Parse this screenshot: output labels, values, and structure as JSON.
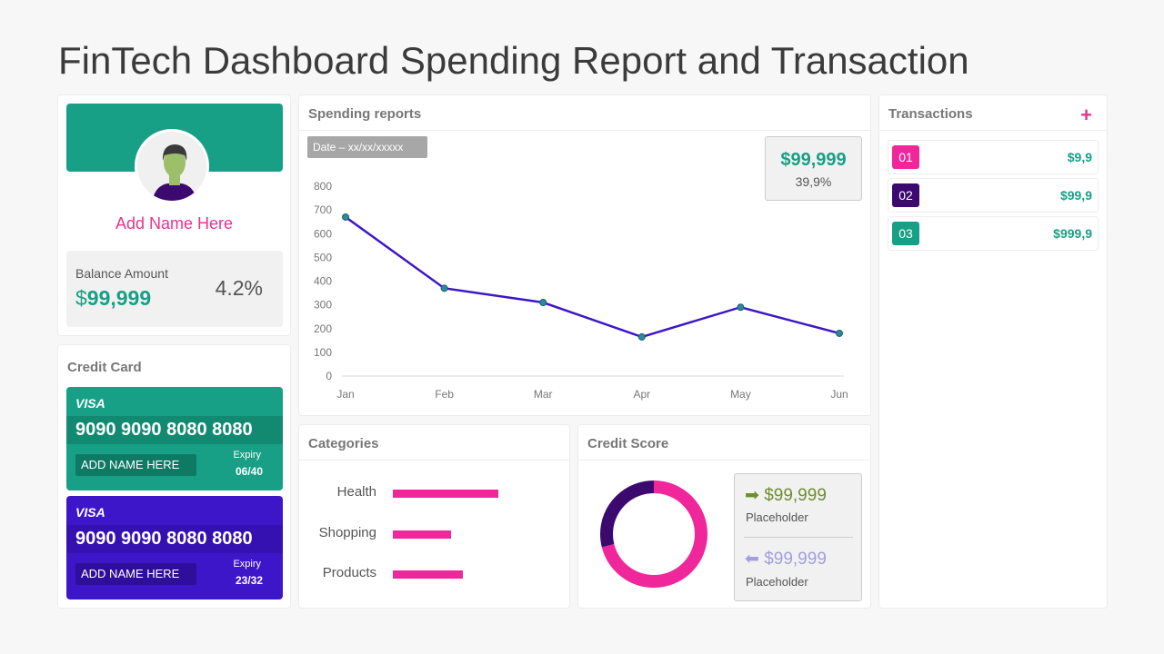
{
  "title": "FinTech Dashboard Spending Report and Transaction",
  "colors": {
    "green": "#17a086",
    "purple": "#3d16c9",
    "dark_purple": "#3c0a6e",
    "pink": "#f0279a"
  },
  "profile": {
    "name": "Add Name Here",
    "balance_label": "Balance Amount",
    "currency": "$",
    "balance": "99,999",
    "change": "4.2%",
    "avatar_icon": "user-avatar-icon"
  },
  "credit_card": {
    "title": "Credit Card",
    "cards": [
      {
        "brand": "VISA",
        "number": "9090 9090 8080 8080",
        "name": "ADD NAME HERE",
        "expiry_label": "Expiry",
        "expiry": "06/40",
        "color": "#17a086"
      },
      {
        "brand": "VISA",
        "number": "9090 9090 8080 8080",
        "name": "ADD NAME HERE",
        "expiry_label": "Expiry",
        "expiry": "23/32",
        "color": "#3d16c9"
      }
    ]
  },
  "spending": {
    "title": "Spending reports",
    "date": "Date – xx/xx/xxxxx",
    "kpi_value": "$99,999",
    "kpi_pct": "39,9%"
  },
  "chart_data": {
    "type": "line",
    "categories": [
      "Jan",
      "Feb",
      "Mar",
      "Apr",
      "May",
      "Jun"
    ],
    "values": [
      670,
      370,
      310,
      165,
      290,
      180
    ],
    "ylim": [
      0,
      800
    ],
    "yticks": [
      0,
      100,
      200,
      300,
      400,
      500,
      600,
      700,
      800
    ],
    "grid": false,
    "color": "#3d16c9"
  },
  "categories": {
    "title": "Categories",
    "items": [
      {
        "label": "Health",
        "value": 100
      },
      {
        "label": "Shopping",
        "value": 55
      },
      {
        "label": "Products",
        "value": 66
      }
    ]
  },
  "credit_score": {
    "title": "Credit Score",
    "donut": [
      {
        "value": 71,
        "color": "#f0279a"
      },
      {
        "value": 29,
        "color": "#3c0a6e"
      }
    ],
    "in_amount": "$99,999",
    "in_label": "Placeholder",
    "out_amount": "$99,999",
    "out_label": "Placeholder"
  },
  "transactions": {
    "title": "Transactions",
    "add_icon": "plus-icon",
    "items": [
      {
        "id": "01",
        "amount": "$9,9",
        "color": "#f0279a"
      },
      {
        "id": "02",
        "amount": "$99,9",
        "color": "#3c0a6e"
      },
      {
        "id": "03",
        "amount": "$999,9",
        "color": "#17a086"
      }
    ]
  }
}
